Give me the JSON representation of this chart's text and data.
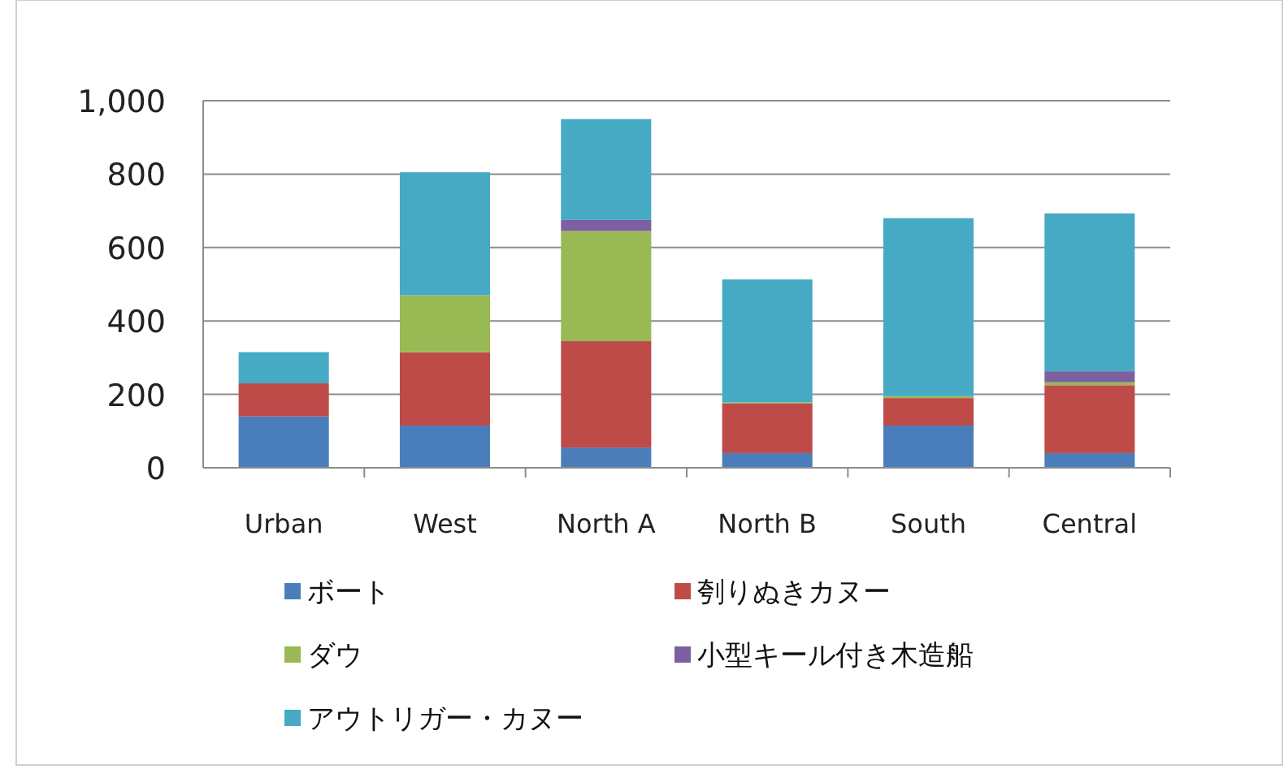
{
  "chart_data": {
    "type": "bar",
    "stacked": true,
    "categories": [
      "Urban",
      "West",
      "North A",
      "North B",
      "South",
      "Central"
    ],
    "series": [
      {
        "name": "ボート",
        "color": "#4a7ebb",
        "values": [
          140,
          115,
          55,
          40,
          115,
          40
        ]
      },
      {
        "name": "刳りぬきカヌー",
        "color": "#be4b48",
        "values": [
          90,
          200,
          290,
          135,
          75,
          185
        ]
      },
      {
        "name": "ダウ",
        "color": "#98b954",
        "values": [
          0,
          155,
          300,
          3,
          5,
          8
        ]
      },
      {
        "name": "小型キール付き木造船",
        "color": "#7d60a0",
        "values": [
          0,
          0,
          30,
          0,
          0,
          30
        ]
      },
      {
        "name": "アウトリガー・カヌー",
        "color": "#46aac5",
        "values": [
          85,
          335,
          275,
          335,
          485,
          430
        ]
      }
    ],
    "ylim": [
      0,
      1000
    ],
    "yticks": [
      0,
      200,
      400,
      600,
      800,
      {
        "value": 1000,
        "label": "1,000"
      }
    ],
    "grid": "y",
    "legend": "bottom"
  }
}
